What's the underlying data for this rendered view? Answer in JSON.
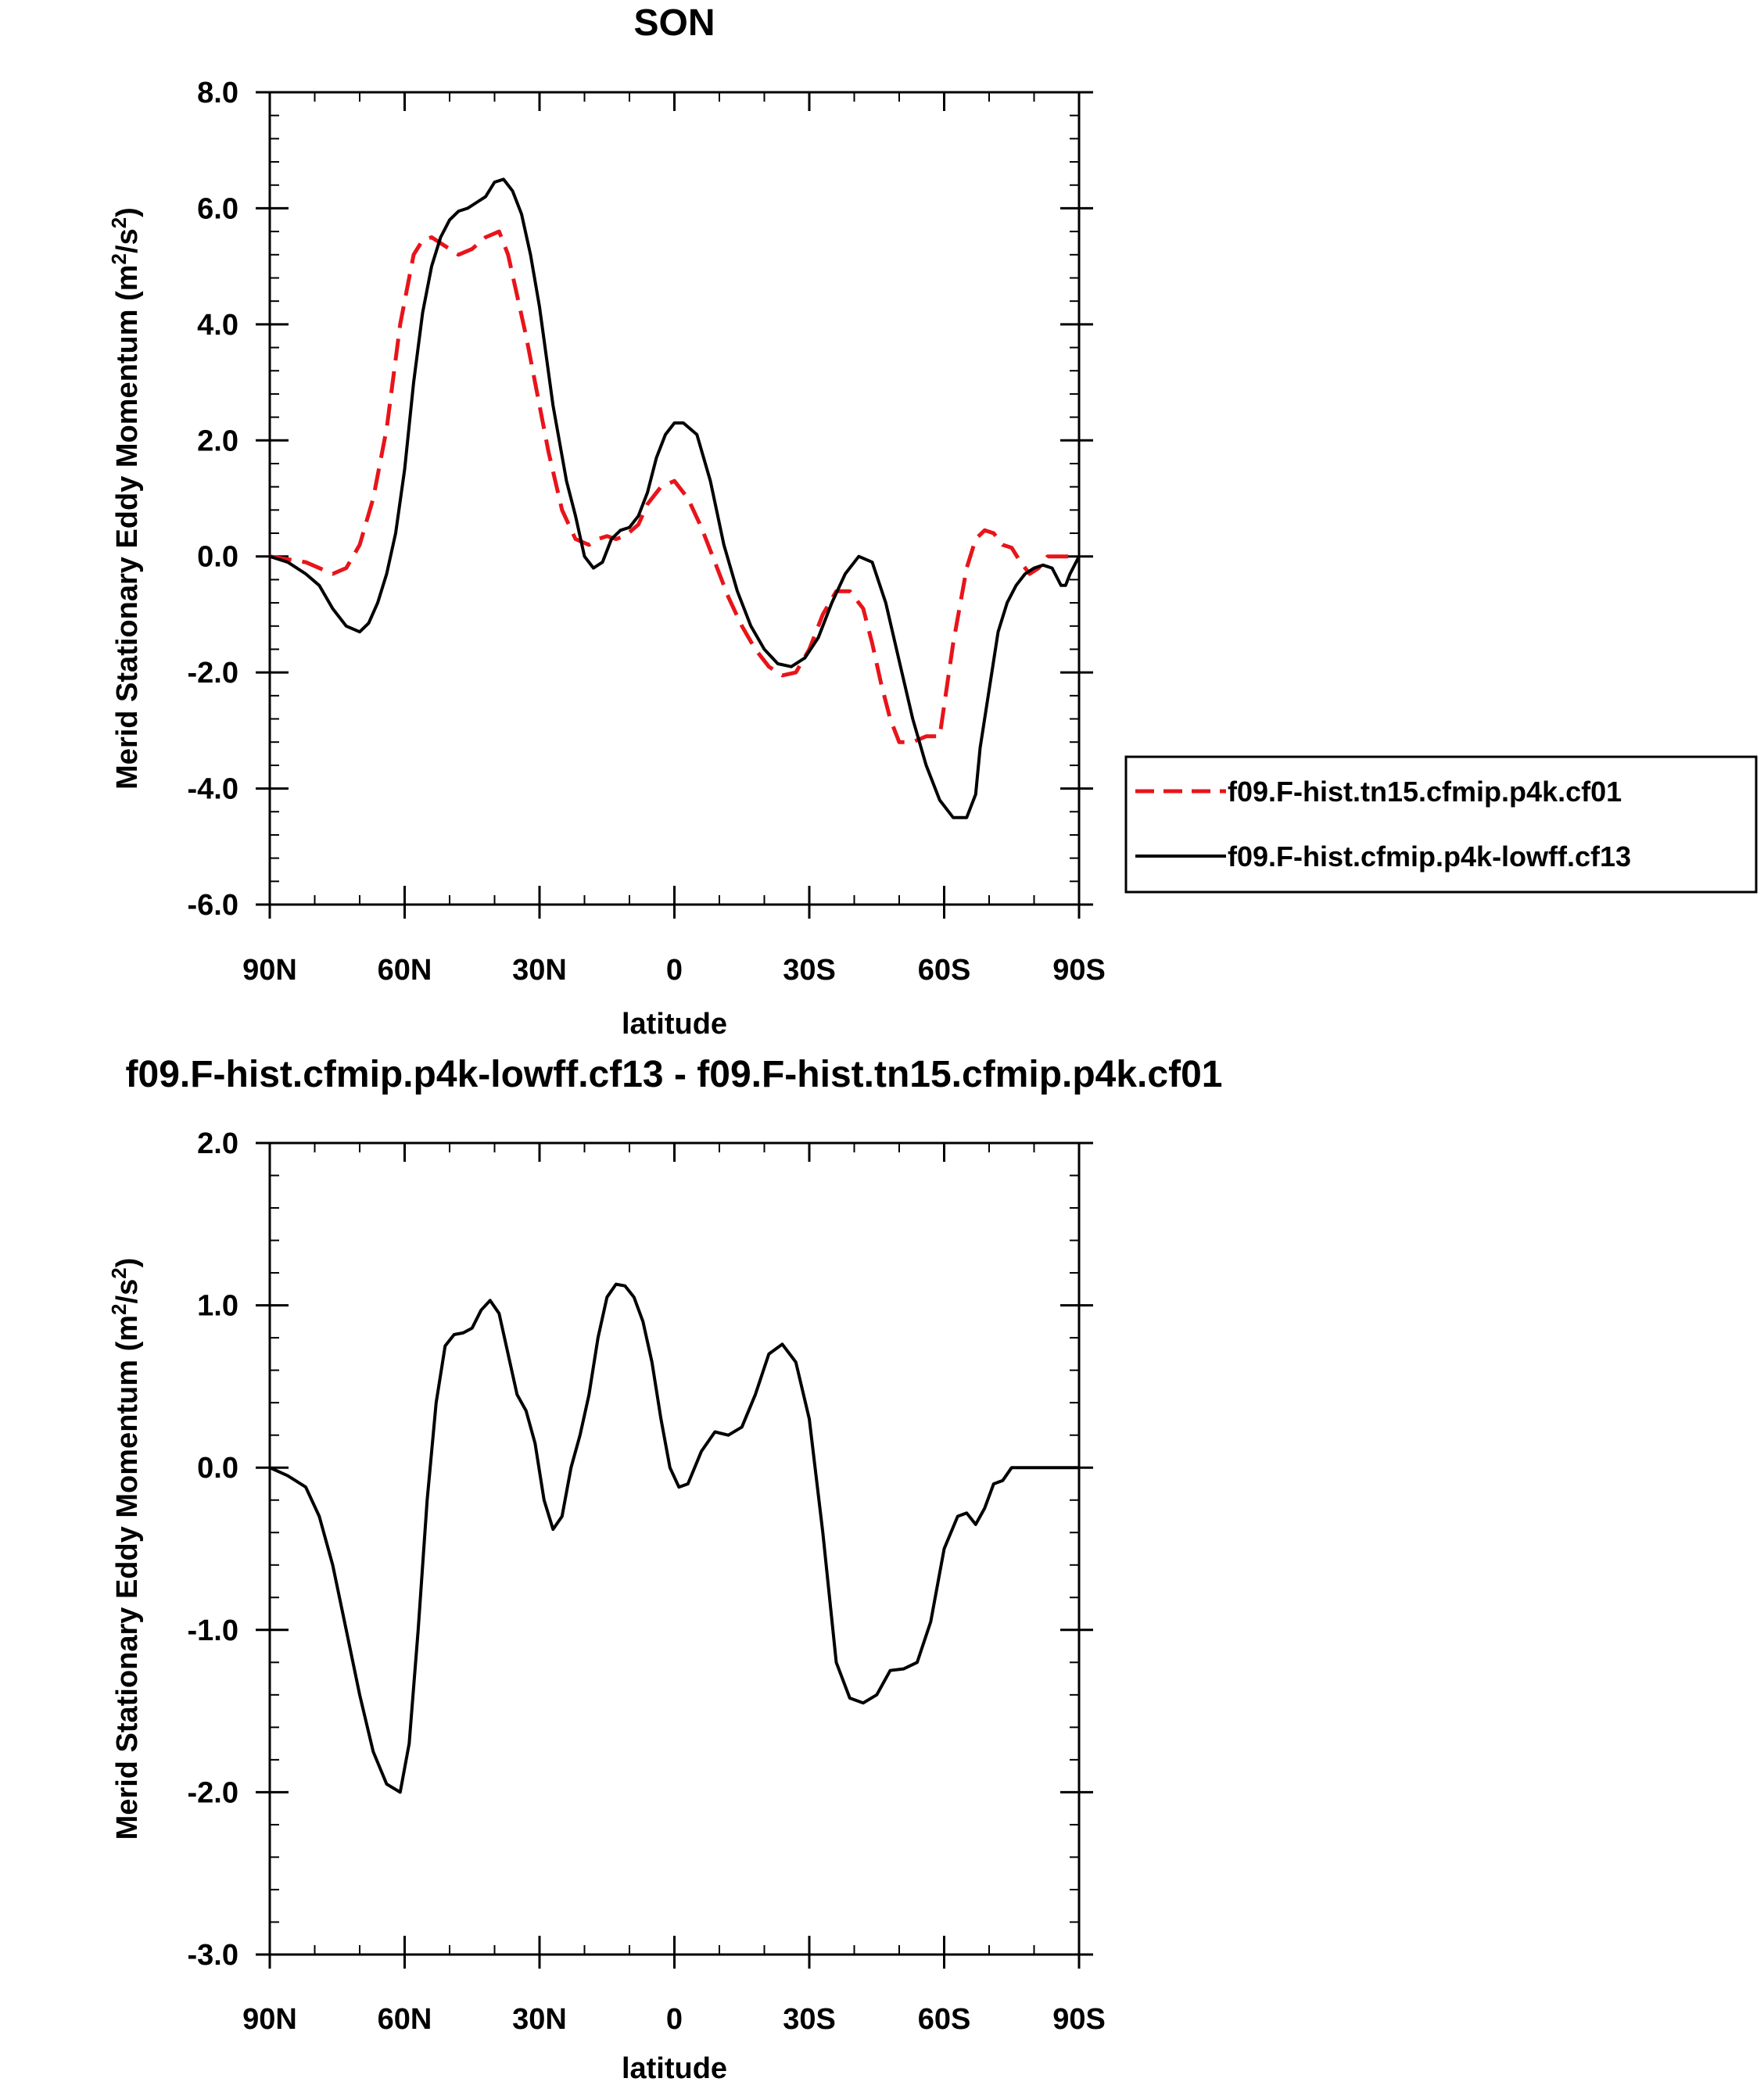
{
  "chart_data": [
    {
      "type": "line",
      "title": "SON",
      "xlabel": "latitude",
      "ylabel": "Merid Stationary Eddy Momentum (m²/s²)",
      "ylabel_parts": {
        "base": "Merid Stationary Eddy Momentum (m",
        "sup1": "2",
        "mid": "/s",
        "sup2": "2",
        "end": ")"
      },
      "xlim": [
        90,
        -90
      ],
      "ylim": [
        -6.0,
        8.0
      ],
      "xticks": [
        {
          "value": 90,
          "label": "90N"
        },
        {
          "value": 60,
          "label": "60N"
        },
        {
          "value": 30,
          "label": "30N"
        },
        {
          "value": 0,
          "label": "0"
        },
        {
          "value": -30,
          "label": "30S"
        },
        {
          "value": -60,
          "label": "60S"
        },
        {
          "value": -90,
          "label": "90S"
        }
      ],
      "yticks": [
        {
          "value": 8.0,
          "label": "8.0"
        },
        {
          "value": 6.0,
          "label": "6.0"
        },
        {
          "value": 4.0,
          "label": "4.0"
        },
        {
          "value": 2.0,
          "label": "2.0"
        },
        {
          "value": 0.0,
          "label": "0.0"
        },
        {
          "value": -2.0,
          "label": "-2.0"
        },
        {
          "value": -4.0,
          "label": "-4.0"
        },
        {
          "value": -6.0,
          "label": "-6.0"
        }
      ],
      "legend_position": "right",
      "series": [
        {
          "name": "f09.F-hist.tn15.cfmip.p4k.cf01",
          "color": "#e8141a",
          "dash": true,
          "x": [
            90,
            86,
            82,
            79,
            76,
            73,
            70,
            67,
            64,
            61,
            58,
            56,
            54,
            52,
            50,
            48,
            45,
            42,
            39,
            37,
            35,
            33,
            31,
            28,
            25,
            22,
            19,
            17,
            15,
            13,
            11,
            8,
            6,
            3,
            0,
            -3,
            -6,
            -9,
            -12,
            -15,
            -18,
            -21,
            -24,
            -27,
            -30,
            -33,
            -36,
            -39,
            -42,
            -44,
            -46,
            -48,
            -50,
            -53,
            -56,
            -59,
            -62,
            -65,
            -67,
            -69,
            -71,
            -73,
            -75,
            -77,
            -79,
            -81,
            -83,
            -85,
            -86,
            -88,
            -90
          ],
          "y": [
            0.0,
            -0.05,
            -0.1,
            -0.2,
            -0.3,
            -0.2,
            0.2,
            1.0,
            2.2,
            4.0,
            5.2,
            5.45,
            5.5,
            5.4,
            5.3,
            5.2,
            5.3,
            5.5,
            5.6,
            5.2,
            4.5,
            3.8,
            3.0,
            1.8,
            0.8,
            0.3,
            0.2,
            0.3,
            0.35,
            0.3,
            0.35,
            0.55,
            0.9,
            1.2,
            1.3,
            1.0,
            0.5,
            -0.1,
            -0.7,
            -1.2,
            -1.6,
            -1.9,
            -2.05,
            -2.0,
            -1.6,
            -1.0,
            -0.6,
            -0.6,
            -0.9,
            -1.5,
            -2.2,
            -2.8,
            -3.2,
            -3.2,
            -3.1,
            -3.1,
            -1.5,
            -0.2,
            0.3,
            0.45,
            0.4,
            0.2,
            0.15,
            -0.1,
            -0.3,
            -0.2,
            0.0,
            0.0,
            0.0,
            0.0,
            0.0
          ]
        },
        {
          "name": "f09.F-hist.cfmip.p4k-lowff.cf13",
          "color": "#000000",
          "dash": false,
          "x": [
            90,
            86,
            82,
            79,
            76,
            73,
            70,
            68,
            66,
            64,
            62,
            60,
            58,
            56,
            54,
            52,
            50,
            48,
            46,
            44,
            42,
            40,
            38,
            36,
            34,
            32,
            30,
            27,
            24,
            22,
            20,
            18,
            16,
            14,
            12,
            10,
            8,
            6,
            4,
            2,
            0,
            -2,
            -5,
            -8,
            -11,
            -14,
            -17,
            -20,
            -23,
            -26,
            -29,
            -32,
            -35,
            -38,
            -41,
            -44,
            -47,
            -50,
            -53,
            -56,
            -59,
            -62,
            -65,
            -67,
            -68,
            -70,
            -72,
            -74,
            -76,
            -78,
            -80,
            -82,
            -84,
            -85,
            -86,
            -87,
            -88,
            -90
          ],
          "y": [
            0.0,
            -0.1,
            -0.3,
            -0.5,
            -0.9,
            -1.2,
            -1.3,
            -1.15,
            -0.8,
            -0.3,
            0.4,
            1.5,
            3.0,
            4.2,
            5.0,
            5.5,
            5.8,
            5.95,
            6.0,
            6.1,
            6.2,
            6.45,
            6.5,
            6.3,
            5.9,
            5.2,
            4.3,
            2.6,
            1.3,
            0.7,
            0.0,
            -0.2,
            -0.1,
            0.3,
            0.45,
            0.5,
            0.7,
            1.1,
            1.7,
            2.1,
            2.3,
            2.3,
            2.1,
            1.3,
            0.2,
            -0.6,
            -1.2,
            -1.6,
            -1.85,
            -1.9,
            -1.75,
            -1.4,
            -0.8,
            -0.3,
            0.0,
            -0.1,
            -0.8,
            -1.8,
            -2.8,
            -3.6,
            -4.2,
            -4.5,
            -4.5,
            -4.1,
            -3.3,
            -2.3,
            -1.3,
            -0.8,
            -0.5,
            -0.3,
            -0.2,
            -0.15,
            -0.2,
            -0.35,
            -0.5,
            -0.5,
            -0.3,
            0.0
          ]
        }
      ]
    },
    {
      "type": "line",
      "title": "f09.F-hist.cfmip.p4k-lowff.cf13 - f09.F-hist.tn15.cfmip.p4k.cf01",
      "xlabel": "latitude",
      "ylabel": "Merid Stationary Eddy Momentum (m²/s²)",
      "ylabel_parts": {
        "base": "Merid Stationary Eddy Momentum (m",
        "sup1": "2",
        "mid": "/s",
        "sup2": "2",
        "end": ")"
      },
      "xlim": [
        90,
        -90
      ],
      "ylim": [
        -3.0,
        2.0
      ],
      "xticks": [
        {
          "value": 90,
          "label": "90N"
        },
        {
          "value": 60,
          "label": "60N"
        },
        {
          "value": 30,
          "label": "30N"
        },
        {
          "value": 0,
          "label": "0"
        },
        {
          "value": -30,
          "label": "30S"
        },
        {
          "value": -60,
          "label": "60S"
        },
        {
          "value": -90,
          "label": "90S"
        }
      ],
      "yticks": [
        {
          "value": 2.0,
          "label": "2.0"
        },
        {
          "value": 1.0,
          "label": "1.0"
        },
        {
          "value": 0.0,
          "label": "0.0"
        },
        {
          "value": -1.0,
          "label": "-1.0"
        },
        {
          "value": -2.0,
          "label": "-2.0"
        },
        {
          "value": -3.0,
          "label": "-3.0"
        }
      ],
      "series": [
        {
          "color": "#000000",
          "dash": false,
          "x": [
            90,
            86,
            82,
            79,
            76,
            73,
            70,
            67,
            64,
            61,
            59,
            57,
            55,
            53,
            51,
            49,
            47,
            45,
            43,
            41,
            39,
            37,
            35,
            33,
            31,
            29,
            27,
            25,
            23,
            21,
            19,
            17,
            15,
            13,
            11,
            9,
            7,
            5,
            3,
            1,
            -1,
            -3,
            -6,
            -9,
            -12,
            -15,
            -18,
            -21,
            -24,
            -27,
            -30,
            -33,
            -36,
            -39,
            -42,
            -45,
            -48,
            -51,
            -54,
            -57,
            -60,
            -63,
            -65,
            -67,
            -69,
            -71,
            -73,
            -75,
            -77,
            -79,
            -81,
            -83,
            -85,
            -86,
            -88,
            -90
          ],
          "y": [
            0.0,
            -0.05,
            -0.12,
            -0.3,
            -0.6,
            -1.0,
            -1.4,
            -1.75,
            -1.95,
            -2.0,
            -1.7,
            -1.0,
            -0.2,
            0.4,
            0.75,
            0.82,
            0.83,
            0.86,
            0.97,
            1.03,
            0.95,
            0.7,
            0.45,
            0.35,
            0.15,
            -0.2,
            -0.38,
            -0.3,
            0.0,
            0.2,
            0.45,
            0.8,
            1.05,
            1.13,
            1.12,
            1.05,
            0.9,
            0.65,
            0.3,
            0.0,
            -0.12,
            -0.1,
            0.1,
            0.22,
            0.2,
            0.25,
            0.45,
            0.7,
            0.76,
            0.65,
            0.3,
            -0.4,
            -1.2,
            -1.42,
            -1.45,
            -1.4,
            -1.25,
            -1.24,
            -1.2,
            -0.95,
            -0.5,
            -0.3,
            -0.28,
            -0.35,
            -0.25,
            -0.1,
            -0.08,
            0.0,
            0.0,
            0.0,
            0.0,
            0.0,
            0.0,
            0.0,
            0.0,
            0.0
          ]
        }
      ]
    }
  ]
}
